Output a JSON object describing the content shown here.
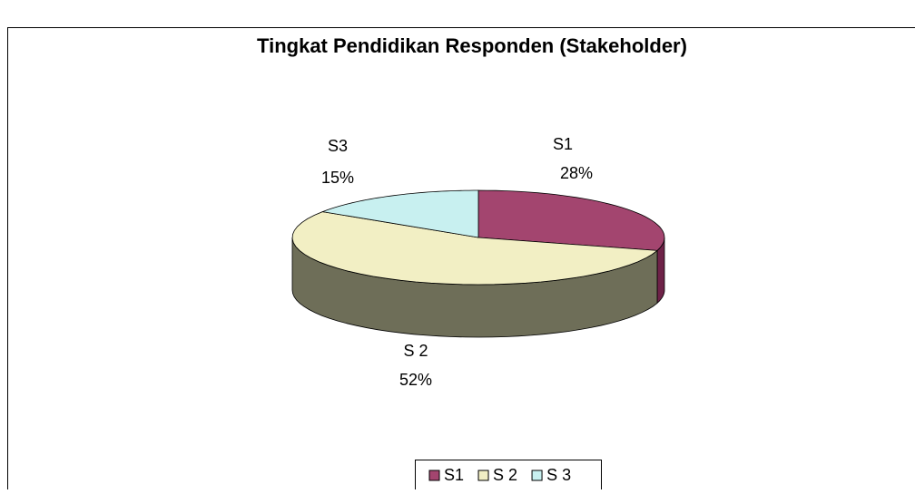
{
  "chart_data": {
    "type": "pie3d",
    "title": "Tingkat Pendidikan Responden (Stakeholder)",
    "categories": [
      "S1",
      "S 2",
      "S 3"
    ],
    "label_names": [
      "S1",
      "S 2",
      "S3"
    ],
    "values": [
      28,
      52,
      15
    ],
    "value_labels": [
      "28%",
      "52%",
      "15%"
    ],
    "colors": [
      "#a3456f",
      "#f2efc4",
      "#c8f0f0"
    ],
    "side_colors": [
      "#6e2248",
      "#6e6e58",
      "#7fa4a4"
    ],
    "legend": "bottom"
  }
}
